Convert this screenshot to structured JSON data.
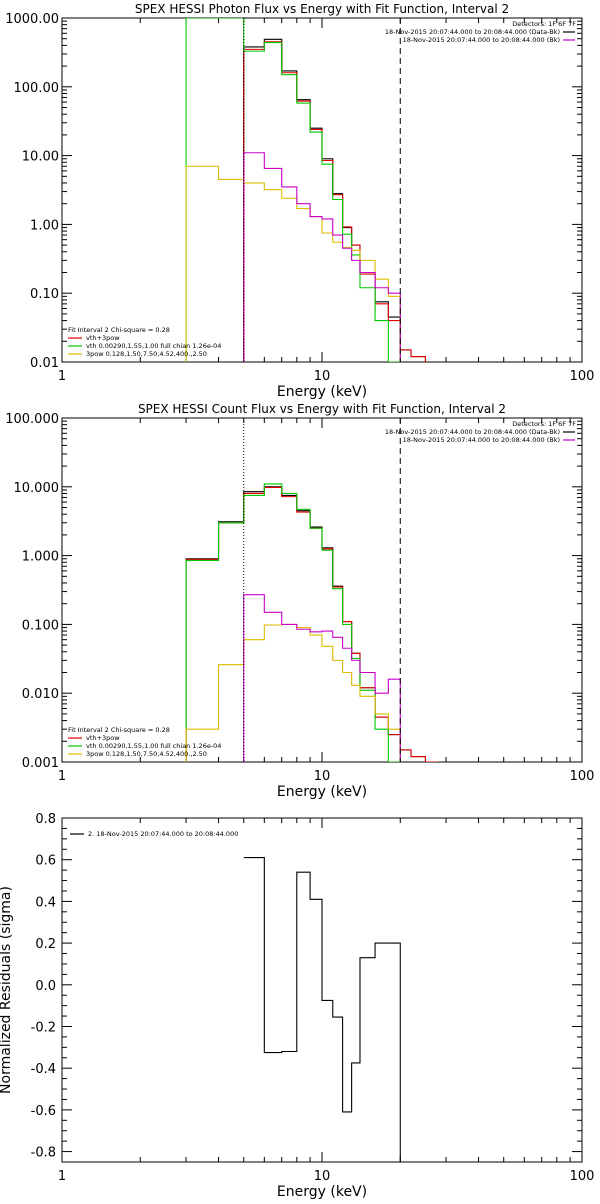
{
  "chart_data": [
    {
      "type": "line",
      "step": true,
      "title": "SPEX HESSI Photon Flux vs Energy with Fit Function, Interval 2",
      "xlabel": "Energy (keV)",
      "ylabel": "",
      "xscale": "log",
      "yscale": "log",
      "xlim": [
        1,
        100
      ],
      "ylim": [
        0.01,
        1000
      ],
      "x_tick_labels": [
        "1",
        "10",
        "100"
      ],
      "y_tick_labels": [
        "0.01",
        "0.10",
        "1.00",
        "10.00",
        "100.00",
        "1000.00"
      ],
      "header_lines": [
        "Detectors: 1F 6F 7F",
        "18-Nov-2015 20:07:44.000 to 20:08:44.000 (Data-Bk)",
        "18-Nov-2015 20:07:44.000 to 20:08:44.000 (Bk)"
      ],
      "legend_position": "top-right",
      "fit_legend": [
        "Fit Interval 2   Chi-square = 0.28",
        "vth+3pow",
        "vth 0.00290,1.55,1.00  full chian 1.26e-04",
        "3pow 0.128,1.50,7.50,4.52,400.,2.50"
      ],
      "fit_legend_position": "bottom-left",
      "x_edges": [
        3,
        4,
        5,
        6,
        7,
        8,
        9,
        10,
        11,
        12,
        13,
        14,
        16,
        18,
        20,
        22,
        25
      ],
      "vlines": [
        {
          "x": 5,
          "style": "dotted"
        },
        {
          "x": 20,
          "style": "dashed"
        }
      ],
      "series": [
        {
          "name": "Data-Bk",
          "color": "#000000",
          "values": [
            null,
            null,
            380,
            490,
            170,
            65,
            25,
            9,
            2.8,
            0.9,
            0.5,
            0.2,
            0.075,
            0.045,
            0.015,
            0.012
          ]
        },
        {
          "name": "vth+3pow",
          "color": "#e00000",
          "values": [
            null,
            null,
            350,
            450,
            160,
            62,
            24,
            8.5,
            2.7,
            0.92,
            0.5,
            0.19,
            0.07,
            0.04,
            0.015,
            0.012
          ]
        },
        {
          "name": "vth",
          "color": "#00c800",
          "values": [
            1000,
            1000,
            330,
            440,
            150,
            58,
            22,
            7.5,
            2.3,
            0.72,
            0.36,
            0.12,
            0.04,
            0.01,
            null,
            null
          ]
        },
        {
          "name": "3pow",
          "color": "#ddbb00",
          "values": [
            7,
            4.5,
            4.0,
            3.2,
            2.4,
            1.7,
            1.3,
            0.75,
            0.55,
            0.46,
            0.42,
            0.3,
            0.16,
            0.09,
            null,
            null
          ]
        },
        {
          "name": "Bk",
          "color": "#c800c8",
          "values": [
            null,
            null,
            11,
            6.5,
            3.5,
            2.0,
            1.3,
            1.2,
            0.7,
            0.45,
            0.3,
            0.2,
            0.12,
            0.1,
            null,
            null
          ]
        }
      ]
    },
    {
      "type": "line",
      "step": true,
      "title": "SPEX HESSI Count Flux vs Energy with Fit Function, Interval 2",
      "xlabel": "Energy (keV)",
      "ylabel": "",
      "xscale": "log",
      "yscale": "log",
      "xlim": [
        1,
        100
      ],
      "ylim": [
        0.001,
        100
      ],
      "x_tick_labels": [
        "1",
        "10",
        "100"
      ],
      "y_tick_labels": [
        "0.001",
        "0.010",
        "0.100",
        "1.000",
        "10.000",
        "100.000"
      ],
      "header_lines": [
        "Detectors: 1F 6F 7F",
        "18-Nov-2015 20:07:44.000 to 20:08:44.000 (Data-Bk)",
        "18-Nov-2015 20:07:44.000 to 20:08:44.000 (Bk)"
      ],
      "legend_position": "top-right",
      "fit_legend": [
        "Fit Interval 2   Chi-square = 0.28",
        "vth+3pow",
        "vth 0.00290,1.55,1.00  full chian 1.26e-04",
        "3pow 0.128,1.50,7.50,4.52,400.,2.50"
      ],
      "fit_legend_position": "bottom-left",
      "x_edges": [
        3,
        4,
        5,
        6,
        7,
        8,
        9,
        10,
        11,
        12,
        13,
        14,
        16,
        18,
        20,
        22,
        25,
        28
      ],
      "vlines": [
        {
          "x": 5,
          "style": "dotted"
        },
        {
          "x": 20,
          "style": "dashed"
        }
      ],
      "series": [
        {
          "name": "Data-Bk",
          "color": "#000000",
          "values": [
            0.9,
            3.1,
            8.5,
            10,
            7.5,
            4.5,
            2.6,
            1.3,
            0.36,
            0.11,
            0.038,
            0.012,
            0.0045,
            0.0025,
            0.0015,
            0.0012,
            0.001
          ]
        },
        {
          "name": "vth+3pow",
          "color": "#e00000",
          "values": [
            0.88,
            3.0,
            8.0,
            9.8,
            7.2,
            4.3,
            2.5,
            1.25,
            0.35,
            0.11,
            0.038,
            0.012,
            0.0045,
            0.0025,
            0.0015,
            0.0012,
            0.001
          ]
        },
        {
          "name": "vth",
          "color": "#00c800",
          "values": [
            0.85,
            3.0,
            7.5,
            11,
            8.0,
            4.7,
            2.5,
            1.2,
            0.33,
            0.1,
            0.032,
            0.011,
            0.003,
            0.001,
            null,
            null,
            null
          ]
        },
        {
          "name": "3pow",
          "color": "#ddbb00",
          "values": [
            0.003,
            0.026,
            0.06,
            0.098,
            0.1,
            0.09,
            0.07,
            0.048,
            0.03,
            0.02,
            0.013,
            0.009,
            0.005,
            0.003,
            null,
            null,
            null
          ]
        },
        {
          "name": "Bk",
          "color": "#c800c8",
          "values": [
            null,
            null,
            0.27,
            0.15,
            0.1,
            0.085,
            0.078,
            0.08,
            0.065,
            0.045,
            0.03,
            0.02,
            0.01,
            0.016,
            null,
            null,
            null
          ]
        }
      ]
    },
    {
      "type": "line",
      "step": true,
      "title": "",
      "xlabel": "Energy (keV)",
      "ylabel": "Normalized Residuals (sigma)",
      "xscale": "log",
      "yscale": "linear",
      "xlim": [
        1,
        100
      ],
      "ylim": [
        -0.85,
        0.8
      ],
      "x_tick_labels": [
        "1",
        "10",
        "100"
      ],
      "y_ticks": [
        -0.8,
        -0.6,
        -0.4,
        -0.2,
        0.0,
        0.2,
        0.4,
        0.6,
        0.8
      ],
      "y_tick_labels": [
        "-0.8",
        "-0.6",
        "-0.4",
        "-0.2",
        "0.0",
        "0.2",
        "0.4",
        "0.6",
        "0.8"
      ],
      "legend": [
        "2. 18-Nov-2015 20:07:44.000 to 20:08:44.000"
      ],
      "legend_position": "top-left",
      "x_edges": [
        5,
        6,
        7,
        8,
        9,
        10,
        11,
        12,
        13,
        14,
        16,
        18,
        20
      ],
      "series": [
        {
          "name": "2. 18-Nov-2015 20:07:44.000 to 20:08:44.000",
          "color": "#000000",
          "values": [
            0.61,
            -0.325,
            -0.32,
            0.54,
            0.41,
            -0.075,
            -0.155,
            -0.61,
            -0.375,
            0.13,
            0.2,
            0.2
          ]
        }
      ]
    }
  ]
}
